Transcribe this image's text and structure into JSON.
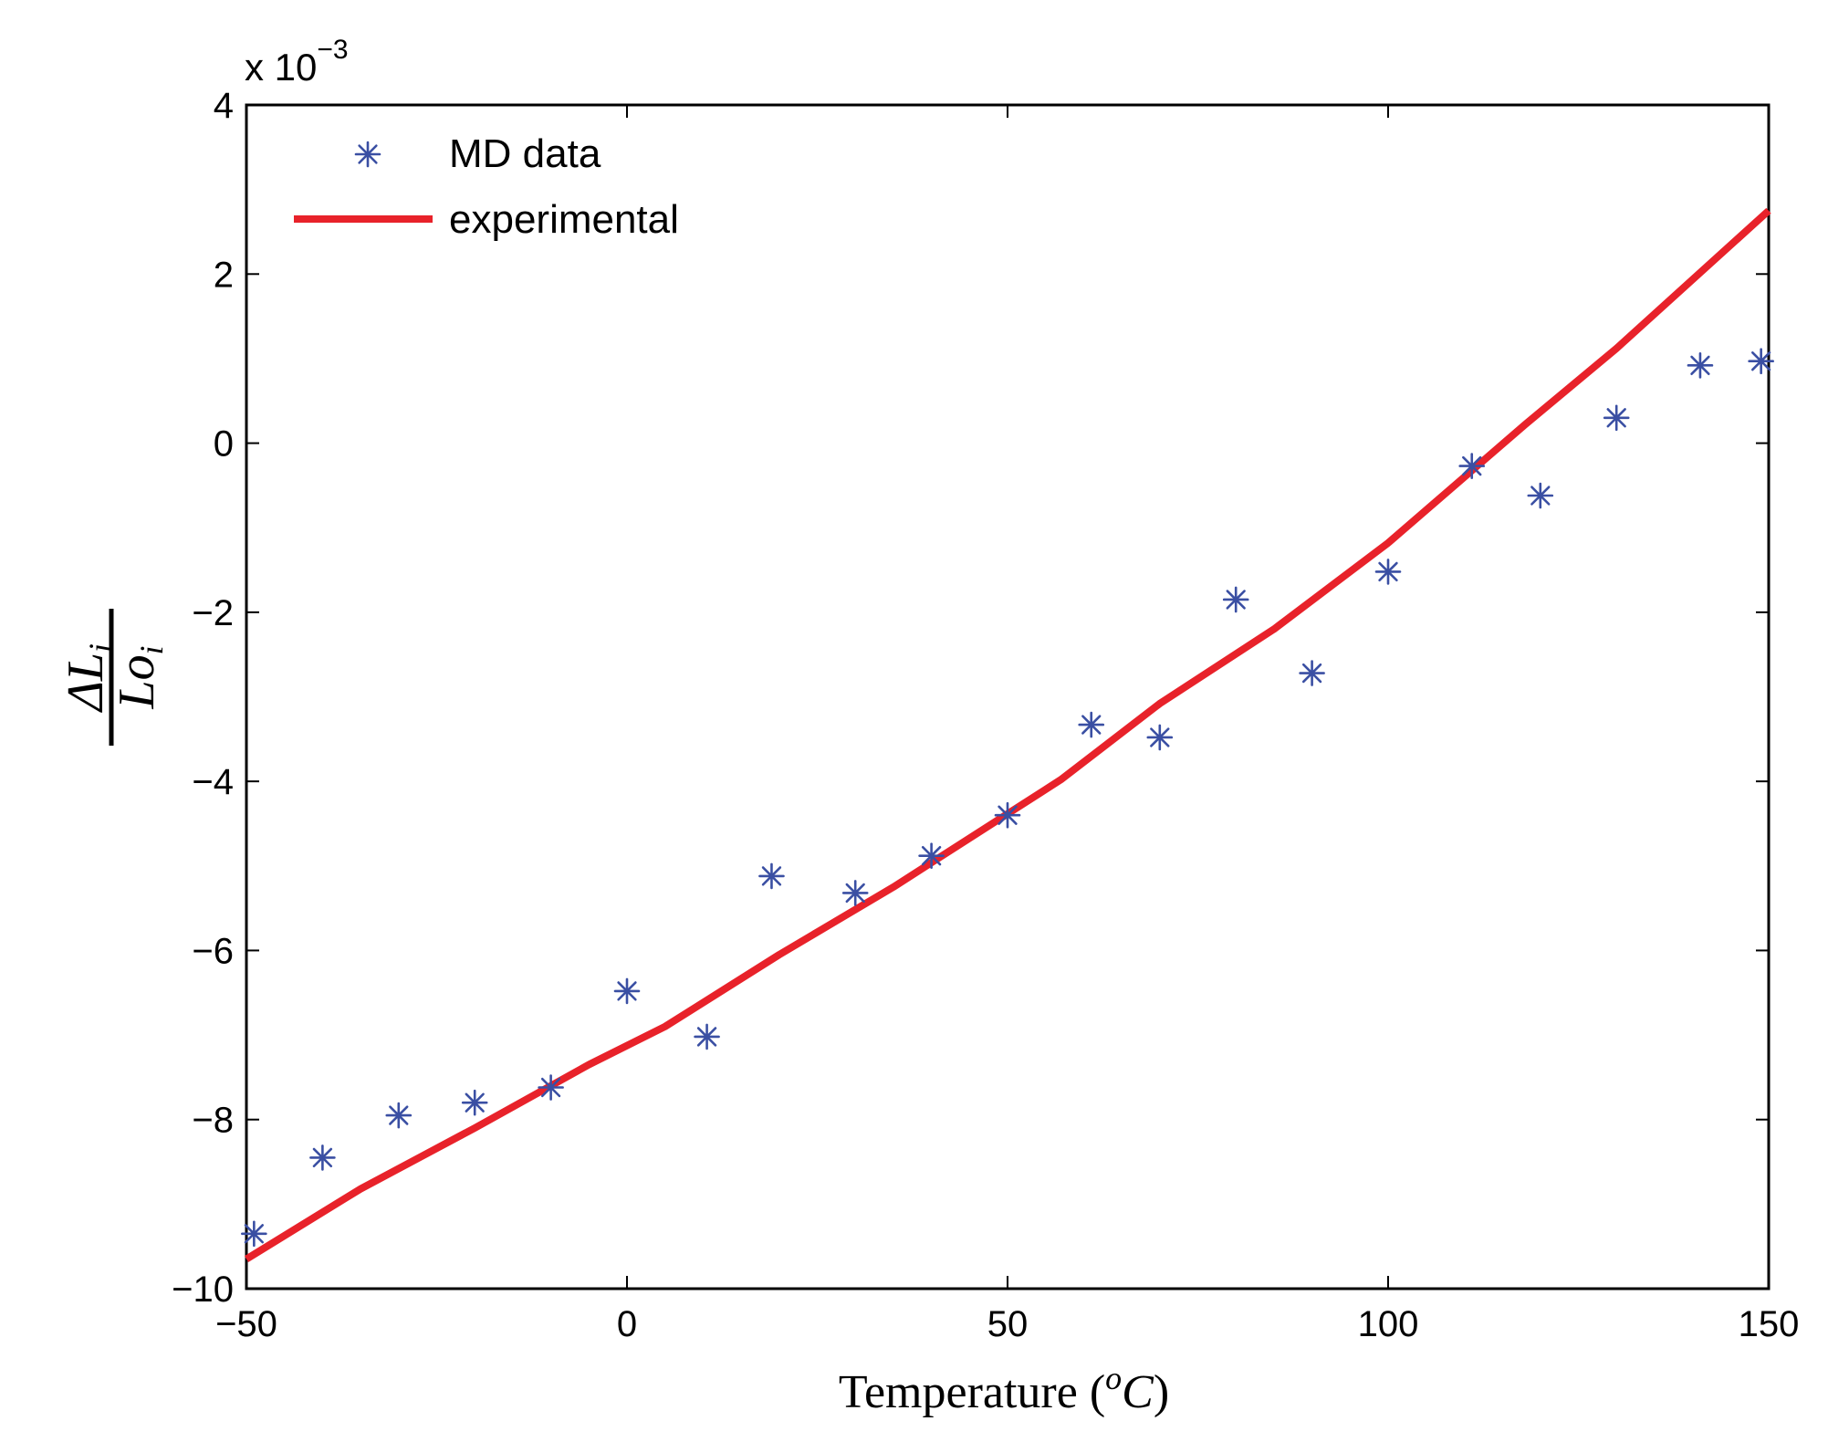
{
  "chart_data": {
    "type": "line",
    "title": "",
    "xlabel": "Temperature (",
    "xlabel_unit_sup": "o",
    "xlabel_unit": "C",
    "xlabel_close": ")",
    "ylabel_numerator": "ΔL",
    "ylabel_numerator_sub": "i",
    "ylabel_denominator": "Lo",
    "ylabel_denominator_sub": "i",
    "y_scale_factor_prefix": "x 10",
    "y_scale_factor_exponent": "−3",
    "xlim": [
      -50,
      150
    ],
    "ylim": [
      -10,
      4
    ],
    "xticks": [
      -50,
      0,
      50,
      100,
      150
    ],
    "xtick_labels": [
      "−50",
      "0",
      "50",
      "100",
      "150"
    ],
    "yticks": [
      -10,
      -8,
      -6,
      -4,
      -2,
      0,
      2,
      4
    ],
    "ytick_labels": [
      "−10",
      "−8",
      "−6",
      "−4",
      "−2",
      "0",
      "2",
      "4"
    ],
    "grid": false,
    "legend_position": "top-left",
    "series": [
      {
        "name": "MD data",
        "style": "markers",
        "marker": "asterisk",
        "color": "#3a4fa3",
        "x": [
          -49,
          -40,
          -30,
          -20,
          -10,
          0,
          10.5,
          19,
          30,
          40,
          50,
          61,
          70,
          80,
          90,
          100,
          111,
          120,
          130,
          141,
          149
        ],
        "y": [
          -9.35,
          -8.45,
          -7.95,
          -7.8,
          -7.62,
          -6.48,
          -7.02,
          -5.12,
          -5.32,
          -4.88,
          -4.4,
          -3.33,
          -3.48,
          -1.85,
          -2.72,
          -1.52,
          -0.27,
          -0.62,
          0.3,
          0.92,
          0.97
        ]
      },
      {
        "name": "experimental",
        "style": "line",
        "color": "#e8222a",
        "x": [
          -50,
          -35,
          -20,
          -5,
          5,
          20,
          35,
          57,
          70,
          85,
          100,
          118,
          130,
          150
        ],
        "y": [
          -9.65,
          -8.82,
          -8.1,
          -7.35,
          -6.9,
          -6.05,
          -5.25,
          -3.98,
          -3.08,
          -2.2,
          -1.18,
          0.22,
          1.12,
          2.75
        ]
      }
    ]
  }
}
